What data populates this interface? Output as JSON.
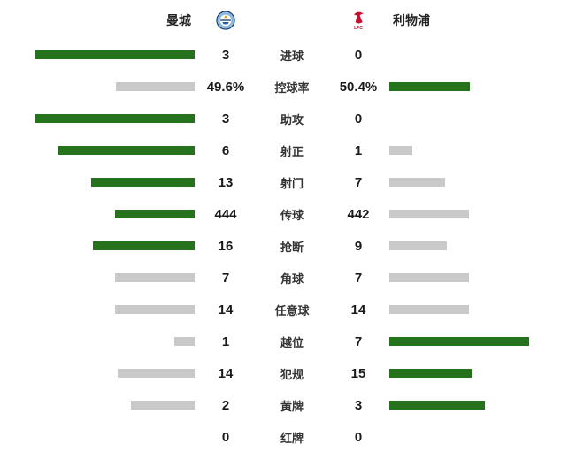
{
  "header": {
    "home_team": "曼城",
    "away_team": "利物浦",
    "home_badge": "man-city-badge",
    "away_badge": "liverpool-badge"
  },
  "colors": {
    "win": "#26711c",
    "lose": "#c9c9c9",
    "mancity_blue": "#8cb8dd",
    "mancity_navy": "#123a6d",
    "liverpool_red": "#c8102e"
  },
  "stats": [
    {
      "label": "进球",
      "home": "3",
      "away": "0",
      "home_val": 3,
      "away_val": 0
    },
    {
      "label": "控球率",
      "home": "49.6%",
      "away": "50.4%",
      "home_val": 49.6,
      "away_val": 50.4
    },
    {
      "label": "助攻",
      "home": "3",
      "away": "0",
      "home_val": 3,
      "away_val": 0
    },
    {
      "label": "射正",
      "home": "6",
      "away": "1",
      "home_val": 6,
      "away_val": 1
    },
    {
      "label": "射门",
      "home": "13",
      "away": "7",
      "home_val": 13,
      "away_val": 7
    },
    {
      "label": "传球",
      "home": "444",
      "away": "442",
      "home_val": 444,
      "away_val": 442
    },
    {
      "label": "抢断",
      "home": "16",
      "away": "9",
      "home_val": 16,
      "away_val": 9
    },
    {
      "label": "角球",
      "home": "7",
      "away": "7",
      "home_val": 7,
      "away_val": 7
    },
    {
      "label": "任意球",
      "home": "14",
      "away": "14",
      "home_val": 14,
      "away_val": 14
    },
    {
      "label": "越位",
      "home": "1",
      "away": "7",
      "home_val": 1,
      "away_val": 7
    },
    {
      "label": "犯规",
      "home": "14",
      "away": "15",
      "home_val": 14,
      "away_val": 15
    },
    {
      "label": "黄牌",
      "home": "2",
      "away": "3",
      "home_val": 2,
      "away_val": 3
    },
    {
      "label": "红牌",
      "home": "0",
      "away": "0",
      "home_val": 0,
      "away_val": 0
    }
  ]
}
